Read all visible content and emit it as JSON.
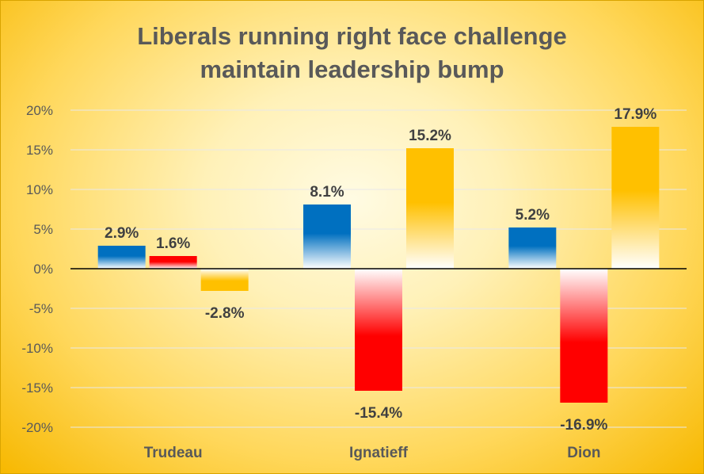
{
  "colors": {
    "series_1": "#0070c0",
    "series_2": "#ff0000",
    "series_3": "#ffc000",
    "text": "#595959",
    "axis": "#000000",
    "grid": "#e8e8e8"
  },
  "chart_data": {
    "type": "bar",
    "title_lines": [
      "Liberals running right face challenge",
      "maintain leadership bump"
    ],
    "categories": [
      "Trudeau",
      "Ignatieff",
      "Dion"
    ],
    "series": [
      {
        "values": [
          2.9,
          8.1,
          5.2
        ],
        "labels": [
          "2.9%",
          "8.1%",
          "5.2%"
        ]
      },
      {
        "values": [
          1.6,
          -15.4,
          -16.9
        ],
        "labels": [
          "1.6%",
          "-15.4%",
          "-16.9%"
        ]
      },
      {
        "values": [
          -2.8,
          15.2,
          17.9
        ],
        "labels": [
          "-2.8%",
          "15.2%",
          "17.9%"
        ]
      }
    ],
    "y_ticks": [
      {
        "value": 20,
        "label": "20%"
      },
      {
        "value": 15,
        "label": "15%"
      },
      {
        "value": 10,
        "label": "10%"
      },
      {
        "value": 5,
        "label": "5%"
      },
      {
        "value": 0,
        "label": "0%"
      },
      {
        "value": -5,
        "label": "-5%"
      },
      {
        "value": -10,
        "label": "-10%"
      },
      {
        "value": -15,
        "label": "-15%"
      },
      {
        "value": -20,
        "label": "-20%"
      }
    ],
    "ylim": [
      -20,
      20
    ],
    "grid": true,
    "legend": "none"
  }
}
